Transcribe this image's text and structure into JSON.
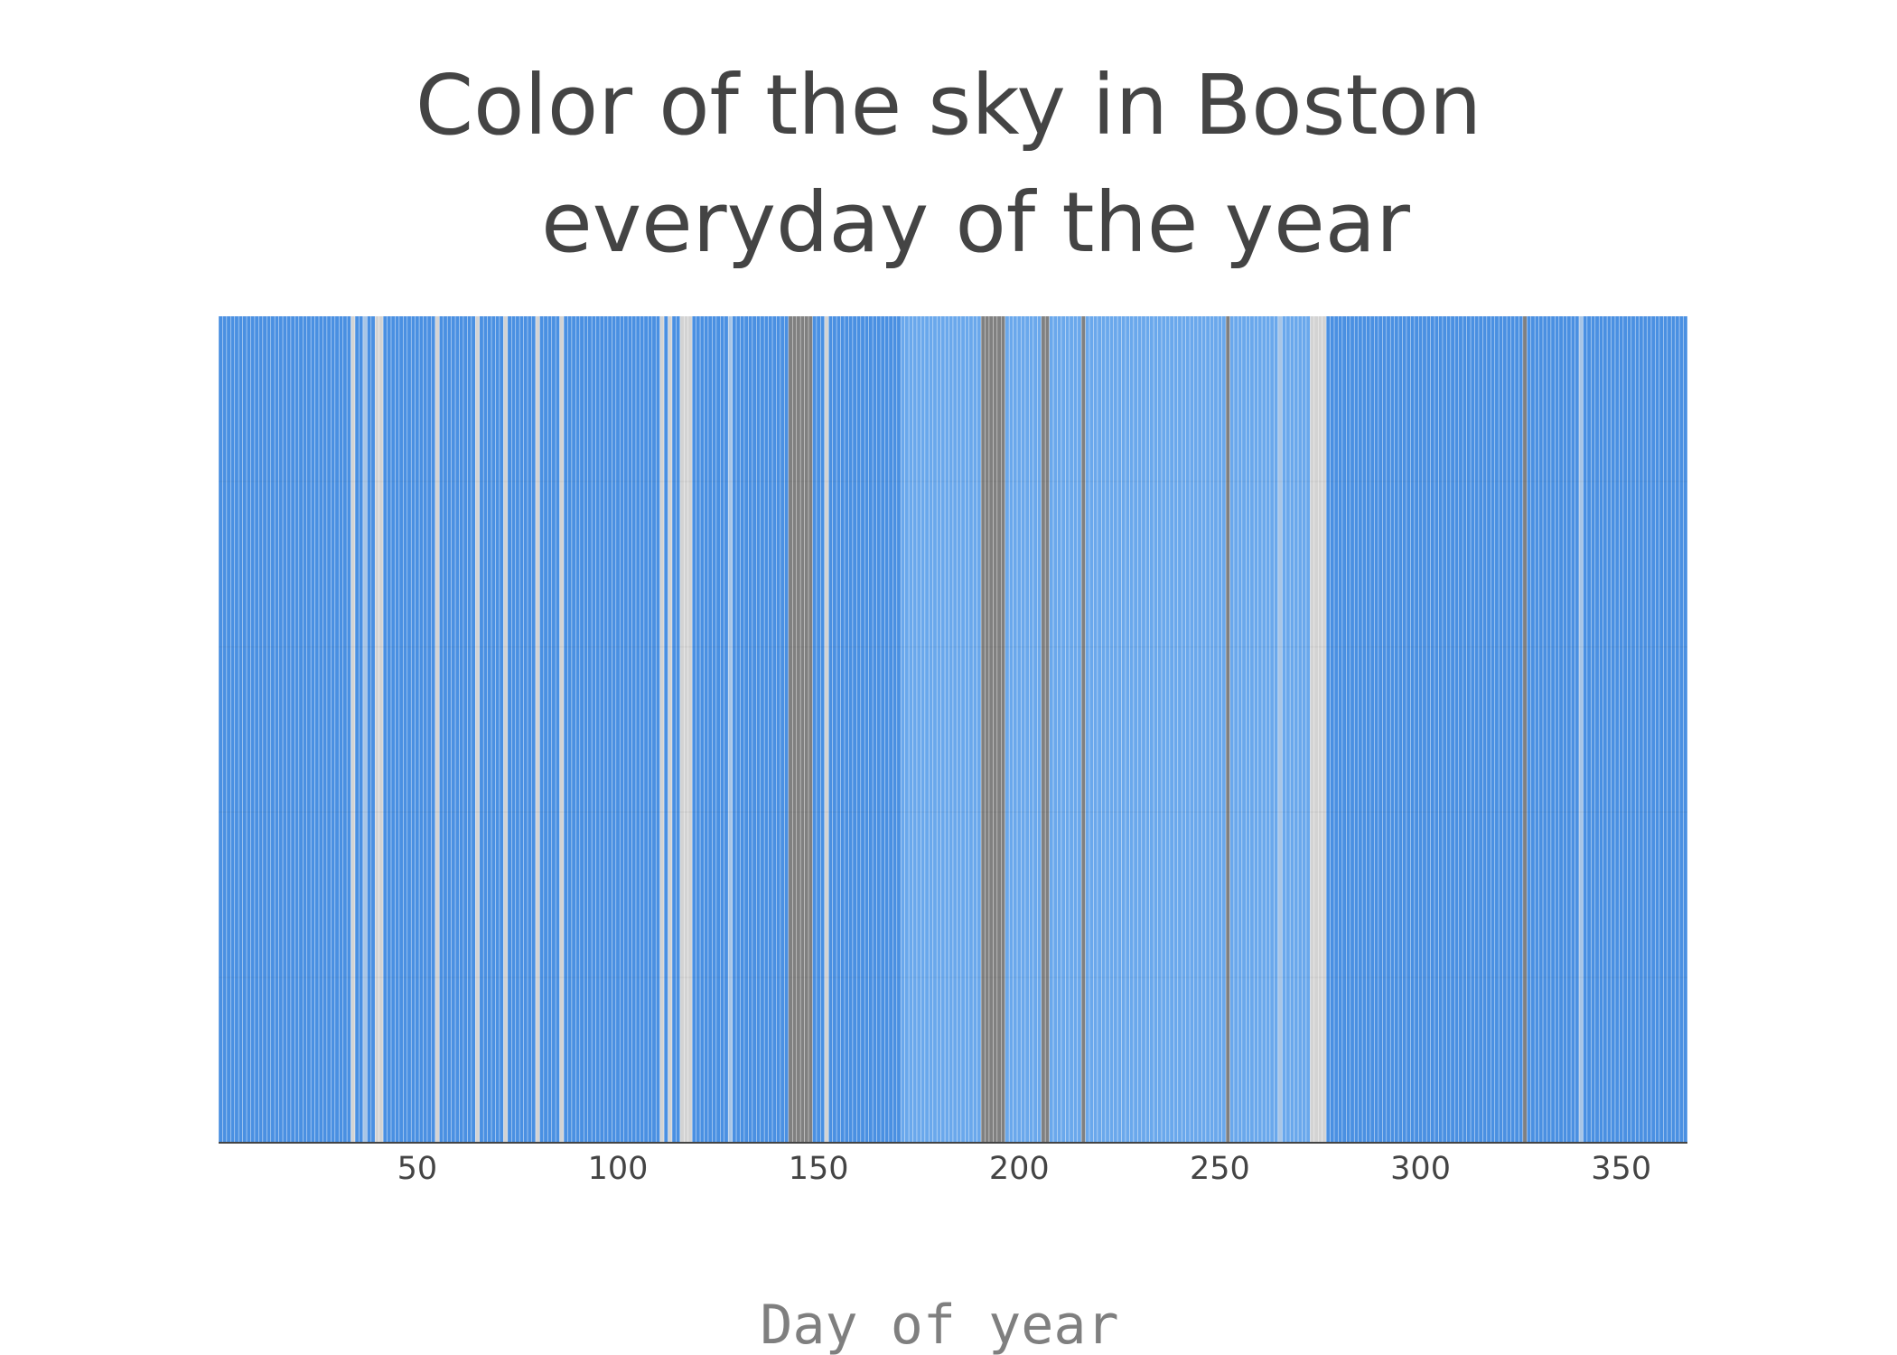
{
  "chart_data": {
    "type": "bar",
    "title": [
      "Color of the sky in Boston",
      "everyday of the year"
    ],
    "xlabel": "Day of year",
    "ylabel": "",
    "x": {
      "start": 1,
      "end": 366
    },
    "xlim": [
      0.5,
      366.5
    ],
    "ylim": [
      0,
      1
    ],
    "xticks": [
      50,
      100,
      150,
      200,
      250,
      300,
      350
    ],
    "grid": true,
    "legend": "none",
    "category_colors": {
      "clear": "#4a90e2",
      "clear-light": "#6aa8ec",
      "partly-cloudy": "#a9c6e6",
      "cloudy": "#d3d3d3",
      "overcast": "#808080"
    },
    "day_categories": [
      "clear",
      "clear",
      "clear",
      "clear",
      "clear",
      "clear",
      "clear",
      "clear",
      "clear",
      "clear",
      "clear",
      "clear",
      "clear",
      "clear",
      "clear",
      "clear",
      "clear",
      "clear",
      "clear",
      "clear",
      "clear",
      "clear",
      "clear",
      "clear",
      "clear",
      "clear",
      "clear",
      "clear",
      "clear",
      "clear",
      "clear",
      "clear",
      "clear",
      "cloudy",
      "clear",
      "clear",
      "partly-cloudy",
      "clear",
      "clear",
      "cloudy",
      "cloudy",
      "clear",
      "clear",
      "clear",
      "clear",
      "clear",
      "clear",
      "clear",
      "clear",
      "clear",
      "clear",
      "clear",
      "clear",
      "clear",
      "cloudy",
      "clear",
      "clear",
      "clear",
      "clear",
      "clear",
      "clear",
      "clear",
      "clear",
      "clear",
      "cloudy",
      "clear",
      "clear",
      "clear",
      "clear",
      "clear",
      "clear",
      "cloudy",
      "clear",
      "clear",
      "clear",
      "clear",
      "clear",
      "clear",
      "clear",
      "cloudy",
      "clear",
      "clear",
      "clear",
      "clear",
      "clear",
      "cloudy",
      "clear",
      "clear",
      "clear",
      "clear",
      "clear",
      "clear",
      "clear",
      "clear",
      "clear",
      "clear",
      "clear",
      "clear",
      "clear",
      "clear",
      "clear",
      "clear",
      "clear",
      "clear",
      "clear",
      "clear",
      "clear",
      "clear",
      "clear",
      "clear",
      "cloudy",
      "clear",
      "cloudy",
      "clear",
      "clear",
      "cloudy",
      "cloudy",
      "cloudy",
      "clear",
      "clear",
      "clear",
      "clear",
      "clear",
      "clear",
      "clear",
      "clear",
      "clear",
      "partly-cloudy",
      "clear",
      "clear",
      "clear",
      "clear",
      "clear",
      "clear",
      "clear",
      "clear",
      "clear",
      "clear",
      "clear",
      "clear",
      "clear",
      "clear",
      "overcast",
      "overcast",
      "overcast",
      "overcast",
      "overcast",
      "overcast",
      "clear",
      "clear",
      "clear",
      "cloudy",
      "clear",
      "clear",
      "clear",
      "clear",
      "clear",
      "clear",
      "clear",
      "clear",
      "clear",
      "clear",
      "clear",
      "clear",
      "clear",
      "clear",
      "clear",
      "clear",
      "clear",
      "clear",
      "clear-light",
      "clear-light",
      "clear-light",
      "clear-light",
      "clear-light",
      "clear-light",
      "clear-light",
      "clear-light",
      "clear-light",
      "clear-light",
      "clear-light",
      "clear-light",
      "clear-light",
      "clear-light",
      "clear-light",
      "clear-light",
      "clear-light",
      "clear-light",
      "clear-light",
      "clear-light",
      "overcast",
      "overcast",
      "overcast",
      "overcast",
      "overcast",
      "overcast",
      "clear-light",
      "clear-light",
      "clear-light",
      "clear-light",
      "clear-light",
      "clear-light",
      "clear-light",
      "clear-light",
      "clear-light",
      "overcast",
      "overcast",
      "clear-light",
      "clear-light",
      "clear-light",
      "clear-light",
      "clear-light",
      "clear-light",
      "clear-light",
      "clear-light",
      "overcast",
      "clear-light",
      "clear-light",
      "clear-light",
      "clear-light",
      "clear-light",
      "clear-light",
      "clear-light",
      "clear-light",
      "clear-light",
      "clear-light",
      "clear-light",
      "clear-light",
      "clear-light",
      "clear-light",
      "clear-light",
      "clear-light",
      "clear-light",
      "clear-light",
      "clear-light",
      "clear-light",
      "clear-light",
      "clear-light",
      "clear-light",
      "clear-light",
      "clear-light",
      "clear-light",
      "clear-light",
      "clear-light",
      "clear-light",
      "clear-light",
      "clear-light",
      "clear-light",
      "clear-light",
      "clear-light",
      "clear-light",
      "overcast",
      "clear-light",
      "clear-light",
      "clear-light",
      "clear-light",
      "clear-light",
      "clear-light",
      "clear-light",
      "clear-light",
      "clear-light",
      "clear-light",
      "clear-light",
      "clear-light",
      "partly-cloudy",
      "clear-light",
      "clear-light",
      "clear-light",
      "clear-light",
      "clear-light",
      "clear-light",
      "clear-light",
      "cloudy",
      "cloudy",
      "cloudy",
      "cloudy",
      "clear",
      "clear",
      "clear",
      "clear",
      "clear",
      "clear",
      "clear",
      "clear",
      "clear",
      "clear",
      "clear",
      "clear",
      "clear",
      "clear",
      "clear",
      "clear",
      "clear",
      "clear",
      "clear",
      "clear",
      "clear",
      "clear",
      "clear",
      "clear",
      "clear",
      "clear",
      "clear",
      "clear",
      "clear",
      "clear",
      "clear",
      "clear",
      "clear",
      "clear",
      "clear",
      "clear",
      "clear",
      "clear",
      "clear",
      "clear",
      "clear",
      "clear",
      "clear",
      "clear",
      "clear",
      "clear",
      "clear",
      "clear",
      "clear",
      "overcast",
      "clear",
      "clear",
      "clear",
      "clear",
      "clear",
      "clear",
      "clear",
      "clear",
      "clear",
      "clear",
      "clear",
      "clear",
      "clear",
      "partly-cloudy",
      "clear",
      "clear",
      "clear",
      "clear",
      "clear",
      "clear",
      "clear",
      "clear",
      "clear",
      "clear",
      "clear",
      "clear",
      "clear",
      "clear",
      "clear",
      "clear",
      "clear",
      "clear",
      "clear",
      "clear",
      "clear",
      "clear",
      "clear",
      "clear",
      "clear",
      "clear"
    ]
  }
}
